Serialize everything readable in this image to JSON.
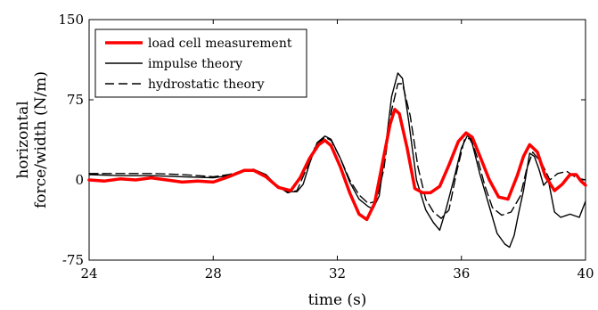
{
  "chart_data": {
    "type": "line",
    "title": "",
    "xlabel": "time (s)",
    "ylabel": [
      "horizontal",
      "force/width (N/m)"
    ],
    "xlim": [
      24,
      40
    ],
    "ylim": [
      -75,
      150
    ],
    "xticks": [
      24,
      28,
      32,
      36,
      40
    ],
    "yticks": [
      -75,
      0,
      75,
      150
    ],
    "legend_position": "top-left",
    "grid": false,
    "series": [
      {
        "name": "load cell measurement",
        "color": "#ff0000",
        "style": "solid",
        "x": [
          24,
          24.5,
          25,
          25.5,
          26,
          26.5,
          27,
          27.5,
          28,
          28.5,
          29,
          29.3,
          29.7,
          30.1,
          30.5,
          30.8,
          31.1,
          31.4,
          31.6,
          31.8,
          32.1,
          32.4,
          32.7,
          32.95,
          33.2,
          33.45,
          33.7,
          33.85,
          34.0,
          34.25,
          34.5,
          34.75,
          35.0,
          35.3,
          35.6,
          35.9,
          36.15,
          36.35,
          36.6,
          36.9,
          37.2,
          37.5,
          37.8,
          38.0,
          38.2,
          38.45,
          38.7,
          39.0,
          39.25,
          39.5,
          39.7,
          39.85,
          40.0
        ],
        "y": [
          0,
          -1,
          1,
          0,
          2,
          0,
          -2,
          -1,
          -2,
          3,
          9,
          9,
          3,
          -7,
          -10,
          2,
          20,
          33,
          37,
          32,
          12,
          -12,
          -32,
          -37,
          -22,
          15,
          52,
          66,
          62,
          30,
          -8,
          -12,
          -12,
          -6,
          14,
          36,
          44,
          40,
          22,
          0,
          -16,
          -18,
          4,
          22,
          33,
          26,
          4,
          -10,
          -4,
          5,
          5,
          -1,
          -5
        ]
      },
      {
        "name": "impulse theory",
        "color": "#000000",
        "style": "solid",
        "x": [
          24,
          25,
          26,
          27,
          28,
          28.5,
          29,
          29.3,
          29.7,
          30.0,
          30.4,
          30.7,
          30.9,
          31.1,
          31.35,
          31.6,
          31.8,
          32.1,
          32.4,
          32.7,
          33.0,
          33.15,
          33.35,
          33.55,
          33.75,
          33.95,
          34.1,
          34.3,
          34.55,
          34.85,
          35.1,
          35.3,
          35.5,
          35.75,
          36.0,
          36.2,
          36.35,
          36.6,
          36.9,
          37.15,
          37.4,
          37.55,
          37.7,
          37.85,
          38.0,
          38.2,
          38.35,
          38.5,
          38.65,
          38.8,
          39.0,
          39.2,
          39.5,
          39.8,
          40.0
        ],
        "y": [
          5,
          4,
          4,
          3,
          2,
          4,
          9,
          10,
          5,
          -4,
          -11,
          -11,
          -4,
          15,
          35,
          41,
          38,
          20,
          -2,
          -18,
          -25,
          -27,
          -15,
          30,
          78,
          100,
          95,
          55,
          0,
          -28,
          -40,
          -47,
          -28,
          0,
          30,
          42,
          34,
          5,
          -25,
          -50,
          -60,
          -63,
          -52,
          -30,
          -10,
          25,
          22,
          10,
          -5,
          0,
          -30,
          -35,
          -32,
          -35,
          -20
        ]
      },
      {
        "name": "hydrostatic theory",
        "color": "#000000",
        "style": "dashed",
        "x": [
          24,
          25,
          26,
          27,
          28,
          28.5,
          29,
          29.3,
          29.7,
          30.0,
          30.4,
          30.7,
          31.0,
          31.3,
          31.6,
          31.8,
          32.1,
          32.4,
          32.7,
          33.0,
          33.25,
          33.5,
          33.75,
          33.95,
          34.1,
          34.35,
          34.6,
          34.85,
          35.1,
          35.35,
          35.6,
          35.85,
          36.1,
          36.3,
          36.5,
          36.75,
          37.0,
          37.3,
          37.6,
          37.9,
          38.1,
          38.3,
          38.6,
          38.85,
          39.1,
          39.4,
          39.7,
          40.0
        ],
        "y": [
          6,
          6,
          6,
          5,
          3,
          5,
          9,
          9,
          5,
          -4,
          -12,
          -10,
          10,
          32,
          40,
          37,
          20,
          0,
          -14,
          -22,
          -20,
          10,
          65,
          90,
          90,
          60,
          12,
          -18,
          -30,
          -36,
          -28,
          8,
          38,
          39,
          22,
          -5,
          -26,
          -33,
          -30,
          -15,
          10,
          26,
          15,
          0,
          6,
          8,
          2,
          0
        ]
      }
    ]
  }
}
